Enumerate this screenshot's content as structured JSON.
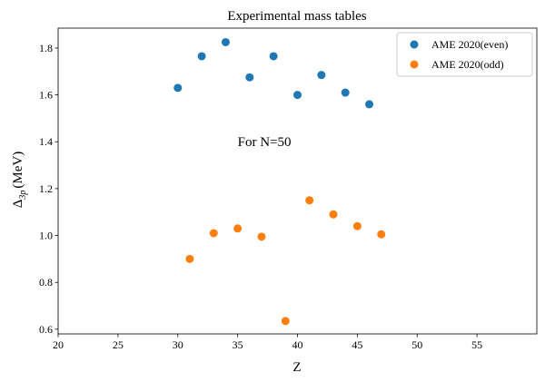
{
  "chart_data": {
    "type": "scatter",
    "title": "Experimental mass tables",
    "xlabel": "Z",
    "ylabel_main": "Δ",
    "ylabel_sub": "3p",
    "ylabel_unit": "(MeV)",
    "xlim": [
      20,
      60
    ],
    "ylim": [
      0.58,
      1.885
    ],
    "xticks": [
      20,
      25,
      30,
      35,
      40,
      45,
      50,
      55
    ],
    "xtick_labels": [
      "20",
      "25",
      "30",
      "35",
      "40",
      "45",
      "50",
      "55"
    ],
    "yticks": [
      0.6,
      0.8,
      1.0,
      1.2,
      1.4,
      1.6,
      1.8
    ],
    "ytick_labels": [
      "0.6",
      "0.8",
      "1.0",
      "1.2",
      "1.4",
      "1.6",
      "1.8"
    ],
    "grid": false,
    "legend_position": "top-right",
    "annotations": [
      {
        "text": "For N=50",
        "x": 35,
        "y": 1.4
      }
    ],
    "series": [
      {
        "name": "AME 2020(even)",
        "color": "#1f77b4",
        "x": [
          30,
          32,
          34,
          36,
          38,
          40,
          42,
          44,
          46
        ],
        "y": [
          1.63,
          1.765,
          1.825,
          1.675,
          1.765,
          1.6,
          1.685,
          1.61,
          1.56
        ]
      },
      {
        "name": "AME 2020(odd)",
        "color": "#ff7f0e",
        "x": [
          31,
          33,
          35,
          37,
          39,
          41,
          43,
          45,
          47
        ],
        "y": [
          0.9,
          1.01,
          1.03,
          0.995,
          0.635,
          1.15,
          1.09,
          1.04,
          1.005
        ]
      }
    ]
  }
}
